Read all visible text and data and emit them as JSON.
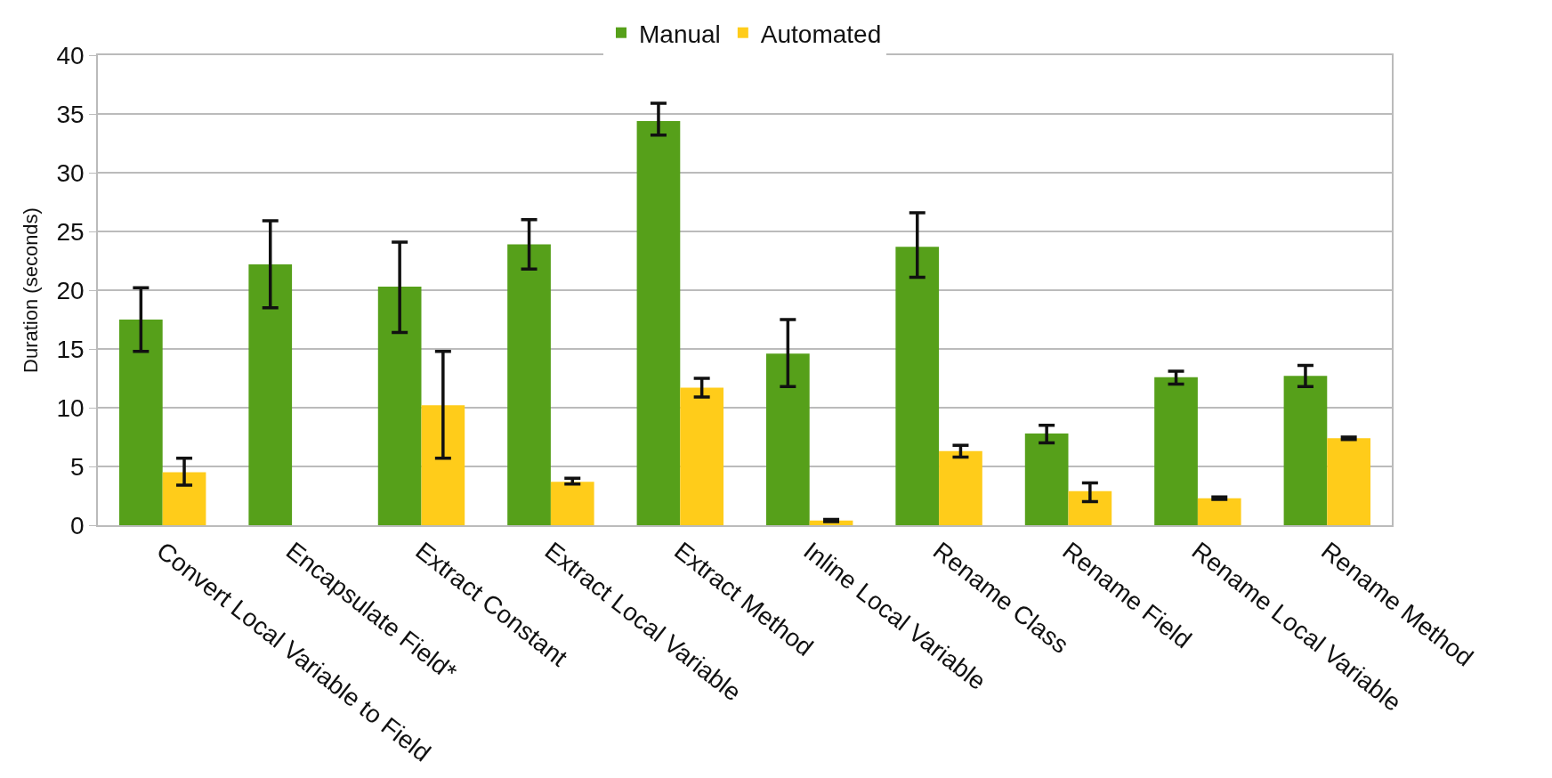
{
  "chart_data": {
    "type": "bar",
    "ylabel": "Duration (seconds)",
    "categories": [
      "Convert Local Variable to Field",
      "Encapsulate Field*",
      "Extract Constant",
      "Extract Local Variable",
      "Extract Method",
      "Inline Local Variable",
      "Rename Class",
      "Rename Field",
      "Rename Local Variable",
      "Rename Method"
    ],
    "series": [
      {
        "name": "Manual",
        "color": "#56a01a",
        "values": [
          17.5,
          22.2,
          20.3,
          23.9,
          34.4,
          14.6,
          23.7,
          7.8,
          12.6,
          12.7
        ],
        "errors": [
          [
            14.8,
            20.2
          ],
          [
            18.5,
            25.9
          ],
          [
            16.4,
            24.1
          ],
          [
            21.8,
            26.0
          ],
          [
            33.2,
            35.9
          ],
          [
            11.8,
            17.5
          ],
          [
            21.1,
            26.6
          ],
          [
            7.0,
            8.5
          ],
          [
            12.0,
            13.1
          ],
          [
            11.8,
            13.6
          ]
        ]
      },
      {
        "name": "Automated",
        "color": "#ffcc1a",
        "values": [
          4.5,
          null,
          10.2,
          3.7,
          11.7,
          0.4,
          6.3,
          2.9,
          2.3,
          7.4
        ],
        "errors": [
          [
            3.4,
            5.7
          ],
          null,
          [
            5.7,
            14.8
          ],
          [
            3.5,
            4.0
          ],
          [
            10.9,
            12.5
          ],
          [
            0.3,
            0.5
          ],
          [
            5.8,
            6.8
          ],
          [
            2.0,
            3.6
          ],
          [
            2.2,
            2.4
          ],
          [
            7.3,
            7.5
          ]
        ]
      }
    ],
    "ylim": [
      0,
      40
    ],
    "yticks": [
      0,
      5,
      10,
      15,
      20,
      25,
      30,
      35,
      40
    ],
    "grid": "y",
    "legend": "top"
  }
}
